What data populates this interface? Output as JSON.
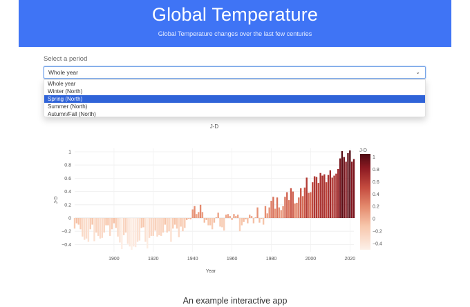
{
  "header": {
    "title": "Global Temperature",
    "subtitle": "Global Temperature changes over the last few centuries",
    "bg_color": "#3f74f5"
  },
  "period": {
    "label": "Select a period",
    "selected": "Whole year",
    "chevron_icon": "chevron-down-icon",
    "options": [
      "Whole year",
      "Winter (North)",
      "Spring (North)",
      "Summer (North)",
      "Autumn/Fall (North)"
    ],
    "highlighted_index": 2
  },
  "chart_data": {
    "type": "bar",
    "title": "J-D",
    "xlabel": "Year",
    "ylabel": "J-D",
    "xlim": [
      1880,
      2022
    ],
    "ylim": [
      -0.5,
      1.05
    ],
    "x_ticks": [
      "1900",
      "1920",
      "1940",
      "1960",
      "1980",
      "2000",
      "2020"
    ],
    "y_ticks": [
      "1",
      "0.8",
      "0.6",
      "0.4",
      "0.2",
      "0",
      "−0.2",
      "−0.4"
    ],
    "colorbar": {
      "title": "J-D",
      "range": [
        -0.5,
        1.05
      ],
      "ticks": [
        "1",
        "0.8",
        "0.6",
        "0.4",
        "0.2",
        "0",
        "−0.2",
        "−0.4"
      ],
      "colors": [
        "#fdf0e8",
        "#f7c6ab",
        "#e48a6d",
        "#c44b3f",
        "#8d1a22",
        "#4d0a12"
      ]
    },
    "start_year": 1880,
    "values": [
      -0.16,
      -0.08,
      -0.1,
      -0.17,
      -0.28,
      -0.33,
      -0.31,
      -0.36,
      -0.17,
      -0.1,
      -0.35,
      -0.22,
      -0.27,
      -0.31,
      -0.3,
      -0.22,
      -0.11,
      -0.11,
      -0.27,
      -0.17,
      -0.08,
      -0.15,
      -0.28,
      -0.37,
      -0.47,
      -0.26,
      -0.22,
      -0.39,
      -0.43,
      -0.48,
      -0.43,
      -0.44,
      -0.36,
      -0.34,
      -0.15,
      -0.14,
      -0.36,
      -0.46,
      -0.3,
      -0.27,
      -0.27,
      -0.19,
      -0.28,
      -0.26,
      -0.27,
      -0.22,
      -0.1,
      -0.22,
      -0.2,
      -0.36,
      -0.16,
      -0.1,
      -0.16,
      -0.29,
      -0.13,
      -0.2,
      -0.15,
      -0.03,
      -0.01,
      -0.02,
      0.13,
      0.18,
      0.06,
      0.09,
      0.2,
      0.09,
      -0.07,
      -0.03,
      -0.11,
      -0.11,
      -0.17,
      -0.07,
      0.01,
      0.08,
      -0.13,
      -0.14,
      -0.19,
      0.05,
      0.06,
      0.03,
      -0.03,
      0.06,
      0.03,
      0.05,
      -0.2,
      -0.11,
      -0.06,
      -0.02,
      -0.08,
      0.05,
      0.03,
      -0.08,
      0.01,
      0.16,
      -0.07,
      -0.01,
      -0.1,
      0.18,
      0.07,
      0.16,
      0.26,
      0.32,
      0.14,
      0.31,
      0.16,
      0.12,
      0.18,
      0.32,
      0.39,
      0.27,
      0.45,
      0.4,
      0.22,
      0.23,
      0.31,
      0.45,
      0.33,
      0.46,
      0.61,
      0.38,
      0.39,
      0.54,
      0.63,
      0.62,
      0.53,
      0.68,
      0.64,
      0.66,
      0.54,
      0.65,
      0.72,
      0.61,
      0.64,
      0.67,
      0.74,
      0.9,
      1.01,
      0.92,
      0.85,
      0.98,
      1.02,
      0.85,
      0.89
    ]
  },
  "caption": "An example interactive app"
}
